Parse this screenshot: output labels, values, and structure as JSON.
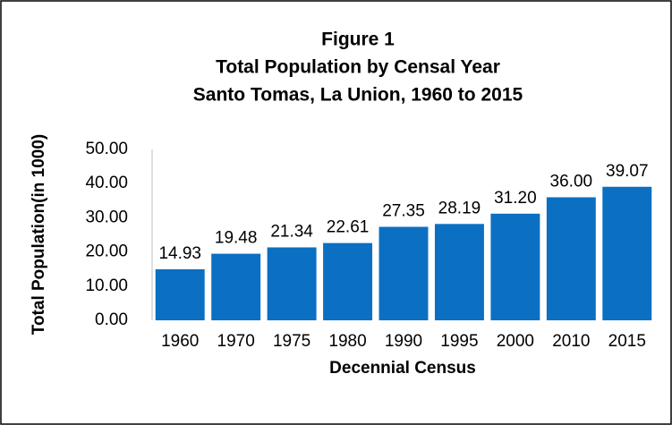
{
  "chart_data": {
    "type": "bar",
    "title": [
      "Figure 1",
      "Total Population by Censal Year",
      "Santo Tomas, La Union, 1960 to 2015"
    ],
    "x_label": "Decennial Census",
    "y_label": "Total Population(in 1000)",
    "categories": [
      "1960",
      "1970",
      "1975",
      "1980",
      "1990",
      "1995",
      "2000",
      "2010",
      "2015"
    ],
    "values": [
      14.93,
      19.48,
      21.34,
      22.61,
      27.35,
      28.19,
      31.2,
      36,
      39.07
    ],
    "value_labels": [
      "14.93",
      "19.48",
      "21.34",
      "22.61",
      "27.35",
      "28.19",
      "31.20",
      "36.00",
      "39.07"
    ],
    "color": "#0b70c2",
    "ylim": [
      0,
      50
    ],
    "yticks": [
      {
        "value": 0,
        "label": "0.00"
      },
      {
        "value": 10,
        "label": "10.00"
      },
      {
        "value": 20,
        "label": "20.00"
      },
      {
        "value": 30,
        "label": "30.00"
      },
      {
        "value": 40,
        "label": "40.00"
      },
      {
        "value": 50,
        "label": "50.00"
      }
    ],
    "grid": false
  }
}
